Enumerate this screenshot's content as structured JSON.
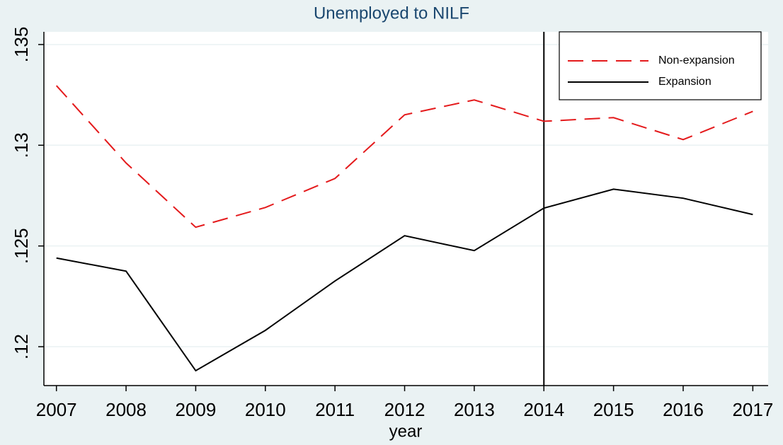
{
  "chart_data": {
    "type": "line",
    "title": "Unemployed to NILF",
    "x_label": "year",
    "x": [
      2007,
      2008,
      2009,
      2010,
      2011,
      2012,
      2013,
      2014,
      2015,
      2016,
      2017
    ],
    "series": [
      {
        "name": "Non-expansion",
        "color": "#e41a1c",
        "dashed": true,
        "values": [
          0.13296,
          0.12912,
          0.12593,
          0.12691,
          0.12835,
          0.13151,
          0.13225,
          0.13119,
          0.13137,
          0.13028,
          0.13168
        ]
      },
      {
        "name": "Expansion",
        "color": "#000000",
        "dashed": false,
        "values": [
          0.1244,
          0.12375,
          0.11881,
          0.12081,
          0.12326,
          0.12551,
          0.12477,
          0.12688,
          0.12782,
          0.12737,
          0.12656
        ]
      }
    ],
    "xlim": [
      2006.82,
      2017.22
    ],
    "xticks": [
      2007,
      2008,
      2009,
      2010,
      2011,
      2012,
      2013,
      2014,
      2015,
      2016,
      2017
    ],
    "ylim": [
      0.11807,
      0.13563
    ],
    "yticks": [
      {
        "value": 0.12,
        "label": ".12"
      },
      {
        "value": 0.125,
        "label": ".125"
      },
      {
        "value": 0.13,
        "label": ".13"
      },
      {
        "value": 0.135,
        "label": ".135"
      }
    ],
    "vline": 2014,
    "grid": true,
    "legend": "top-right"
  }
}
